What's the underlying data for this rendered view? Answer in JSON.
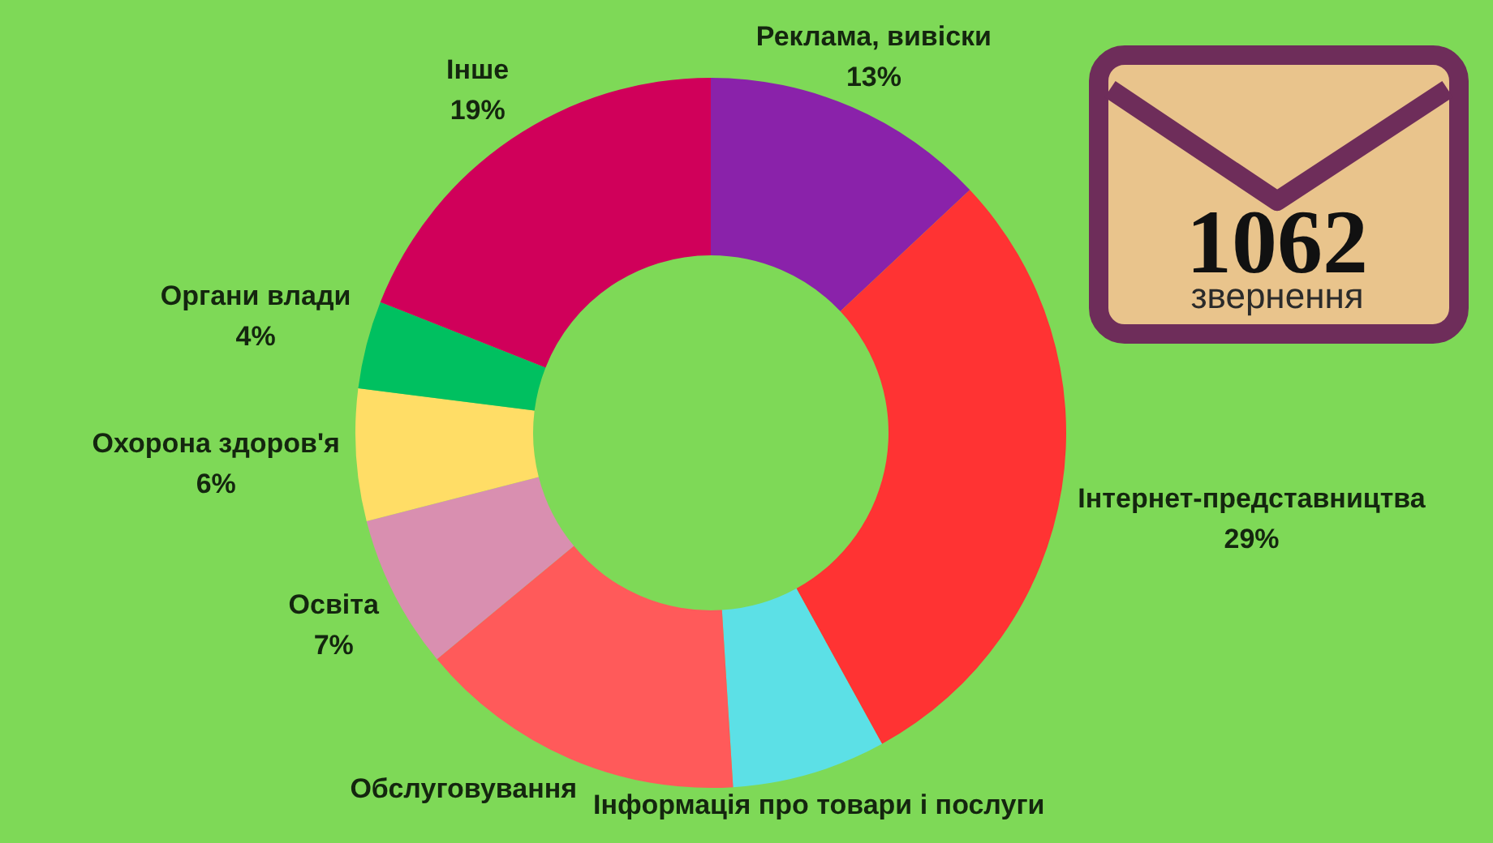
{
  "chart_data": {
    "type": "donut",
    "categories": [
      "Реклама, вивіски",
      "Інтернет-представництва",
      "Інформація про товари і послуги",
      "Обслуговування",
      "Освіта",
      "Охорона здоров'я",
      "Органи влади",
      "Інше"
    ],
    "values": [
      13,
      29,
      7,
      15,
      7,
      6,
      4,
      19
    ],
    "colors": [
      "#8a22aa",
      "#ff3333",
      "#5ce0e6",
      "#ff5a5a",
      "#d98fb0",
      "#ffdd66",
      "#00c060",
      "#d0005a"
    ],
    "value_labels": [
      "13%",
      "29%",
      null,
      null,
      "7%",
      "6%",
      "4%",
      "19%"
    ],
    "annotations": [
      "1062",
      "звернення"
    ]
  }
}
